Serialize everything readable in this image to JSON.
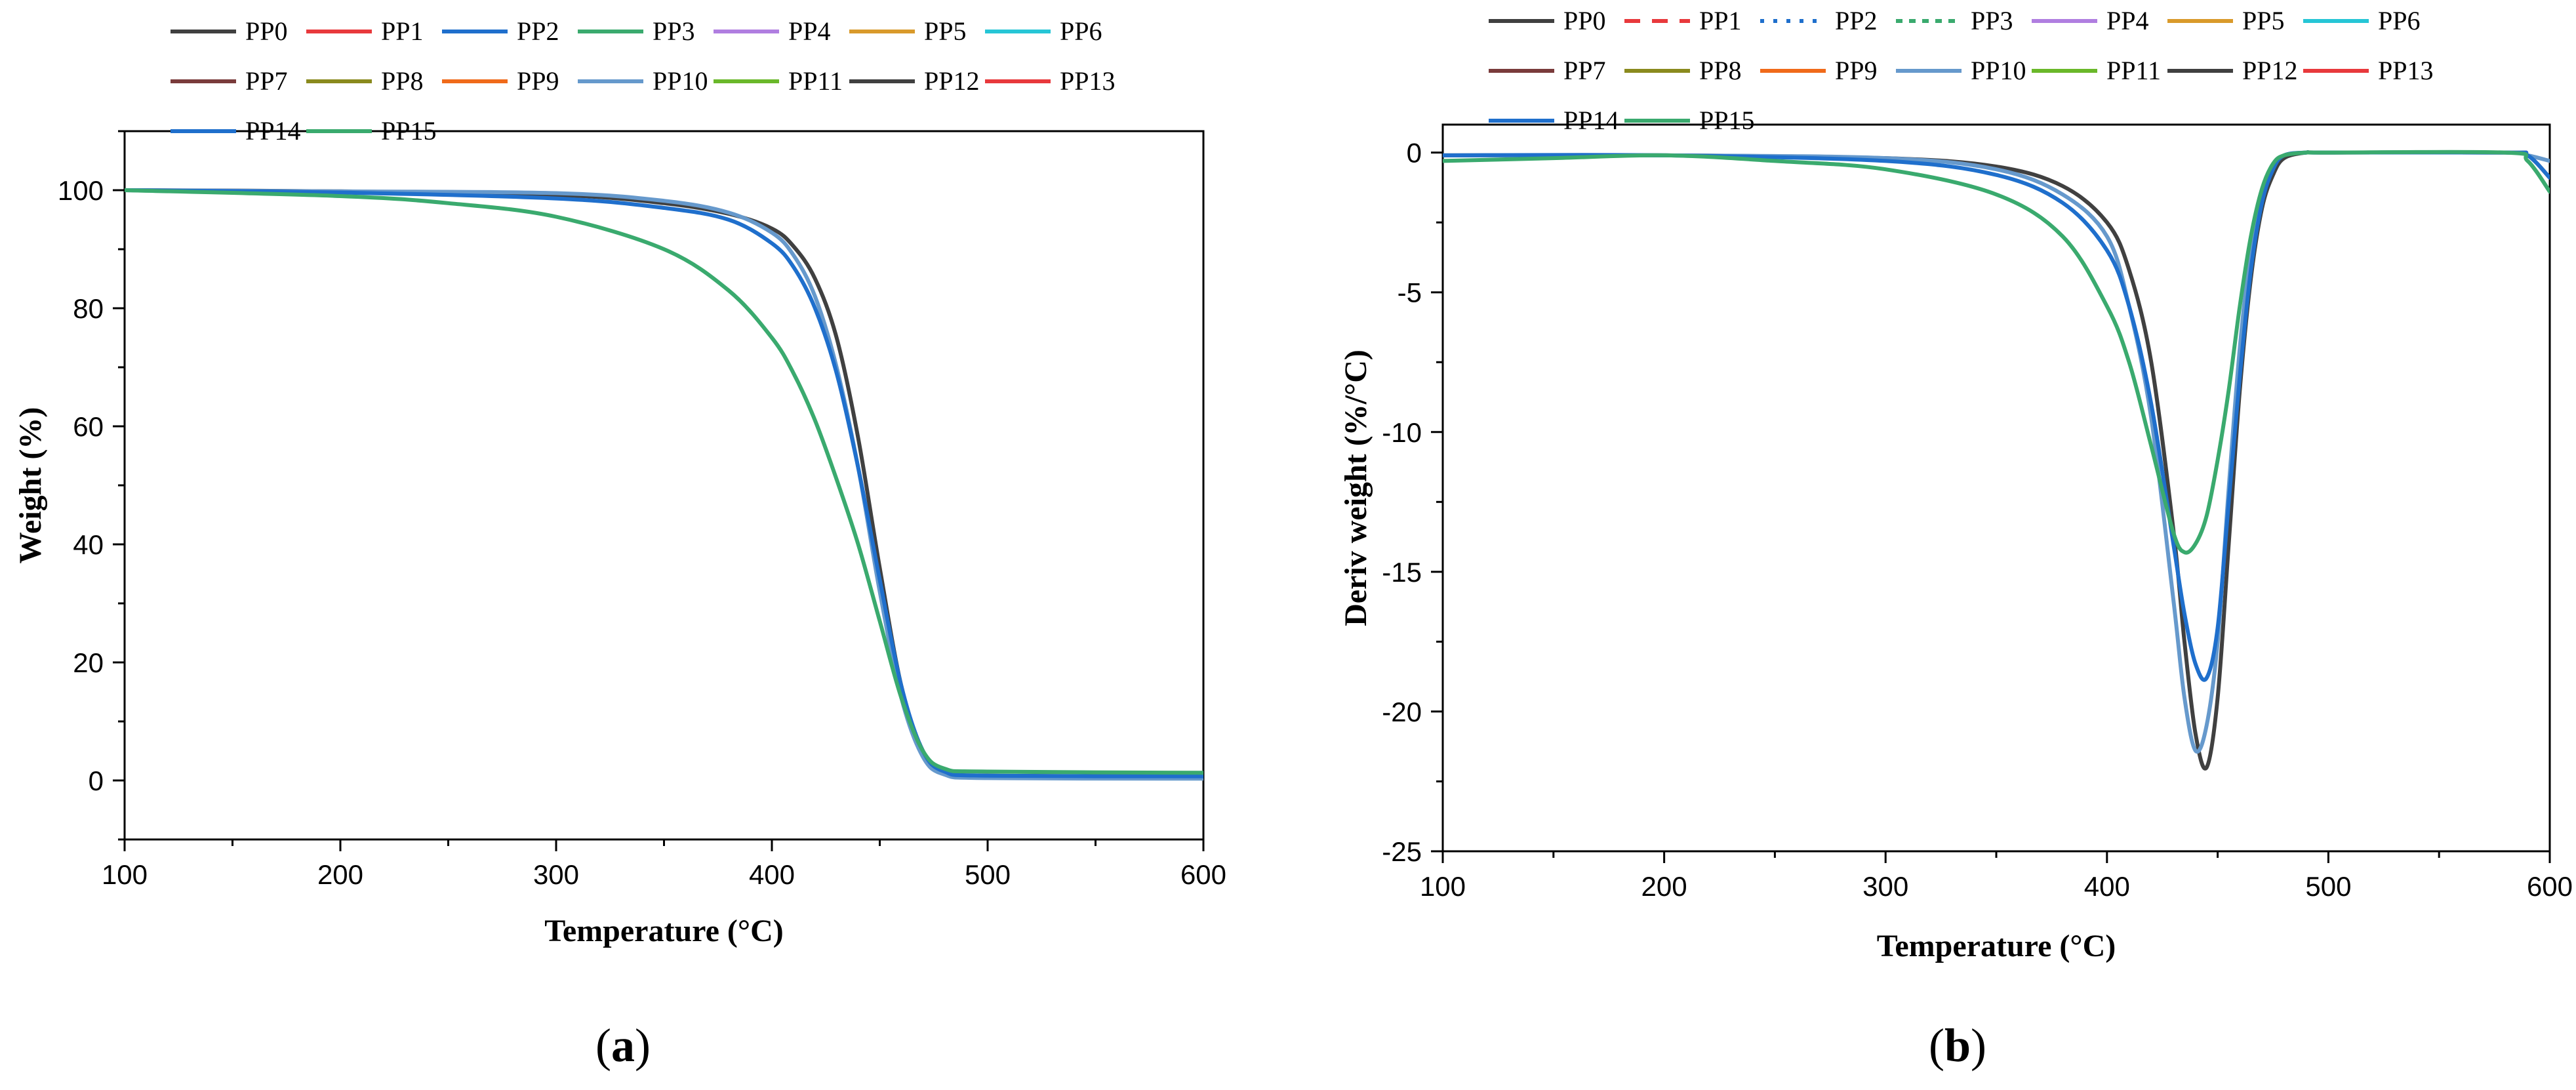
{
  "legend_entries": [
    "PP0",
    "PP1",
    "PP2",
    "PP3",
    "PP4",
    "PP5",
    "PP6",
    "PP7",
    "PP8",
    "PP9",
    "PP10",
    "PP11",
    "PP12",
    "PP13",
    "PP14",
    "PP15"
  ],
  "colors": {
    "PP0": "#404040",
    "PP1": "#e8393c",
    "PP2": "#1f6fcc",
    "PP3": "#3aaa6e",
    "PP4": "#b07ee0",
    "PP5": "#d99a2b",
    "PP6": "#26c6d6",
    "PP7": "#7a3b3b",
    "PP8": "#8a8a1e",
    "PP9": "#f06a1a",
    "PP10": "#6699cc",
    "PP11": "#6ab82a",
    "PP12": "#404040",
    "PP13": "#e8393c",
    "PP14": "#1f6fcc",
    "PP15": "#3aaa6e"
  },
  "chart_data": [
    {
      "panel_label_open": "(",
      "panel_label_letter": "a",
      "panel_label_close": ")",
      "type": "line",
      "title": "",
      "xlabel": "Temperature (°C)",
      "ylabel": "Weight (%)",
      "xlim": [
        100,
        600
      ],
      "ylim": [
        -10,
        110
      ],
      "xticks": [
        100,
        200,
        300,
        400,
        500,
        600
      ],
      "yticks": [
        0,
        20,
        40,
        60,
        80,
        100
      ],
      "legend_position": "top",
      "series": [
        {
          "name": "PP0",
          "x": [
            100,
            200,
            300,
            350,
            380,
            400,
            410,
            420,
            430,
            440,
            450,
            460,
            470,
            480,
            500,
            600
          ],
          "y": [
            100,
            99.8,
            99.2,
            97.8,
            96,
            93.5,
            90.5,
            85,
            75,
            58,
            36,
            16,
            5,
            1.5,
            0.8,
            0.7
          ]
        },
        {
          "name": "PP10",
          "x": [
            100,
            200,
            300,
            350,
            380,
            400,
            410,
            420,
            430,
            440,
            450,
            460,
            470,
            480,
            500,
            600
          ],
          "y": [
            100,
            99.8,
            99.5,
            98.2,
            96.2,
            92.8,
            89,
            82,
            70,
            53,
            32,
            14,
            4,
            1,
            0.4,
            0.3
          ]
        },
        {
          "name": "PP14",
          "x": [
            100,
            200,
            300,
            350,
            380,
            400,
            410,
            420,
            430,
            440,
            450,
            460,
            470,
            480,
            500,
            600
          ],
          "y": [
            100,
            99.6,
            98.6,
            97,
            95,
            91,
            87,
            80,
            69,
            53,
            34,
            16,
            5,
            1.5,
            0.8,
            0.7
          ]
        },
        {
          "name": "PP15",
          "x": [
            100,
            200,
            250,
            300,
            350,
            380,
            400,
            410,
            420,
            430,
            440,
            450,
            460,
            470,
            480,
            500,
            600
          ],
          "y": [
            100,
            99,
            97.8,
            95.5,
            90,
            83,
            75,
            69,
            61,
            51,
            40,
            27,
            14,
            5,
            2,
            1.5,
            1.3
          ]
        }
      ]
    },
    {
      "panel_label_open": "(",
      "panel_label_letter": "b",
      "panel_label_close": ")",
      "type": "line",
      "title": "",
      "xlabel": "Temperature (°C)",
      "ylabel": "Deriv weight (%/°C)",
      "xlim": [
        100,
        600
      ],
      "ylim": [
        -25,
        1
      ],
      "xticks": [
        100,
        200,
        300,
        400,
        500,
        600
      ],
      "yticks": [
        0,
        -5,
        -10,
        -15,
        -20,
        -25
      ],
      "legend_position": "top",
      "series": [
        {
          "name": "PP0",
          "x": [
            100,
            200,
            300,
            350,
            380,
            400,
            410,
            420,
            430,
            435,
            440,
            445,
            450,
            455,
            460,
            465,
            470,
            475,
            480,
            490,
            500,
            580,
            590,
            600
          ],
          "y": [
            -0.1,
            -0.1,
            -0.2,
            -0.5,
            -1.2,
            -2.5,
            -4.2,
            -7.5,
            -13.5,
            -17.5,
            -20.8,
            -22,
            -19.5,
            -14,
            -8.5,
            -4.5,
            -2,
            -0.8,
            -0.2,
            0,
            0,
            0,
            -0.1,
            -0.9
          ]
        },
        {
          "name": "PP10",
          "x": [
            100,
            200,
            300,
            350,
            380,
            400,
            410,
            420,
            430,
            435,
            440,
            445,
            450,
            455,
            460,
            465,
            470,
            475,
            480,
            490,
            500,
            580,
            590,
            600
          ],
          "y": [
            -0.1,
            -0.1,
            -0.2,
            -0.6,
            -1.5,
            -3,
            -5.5,
            -9.5,
            -16,
            -19.5,
            -21.4,
            -20.5,
            -17.5,
            -12,
            -7,
            -3.5,
            -1.5,
            -0.5,
            -0.1,
            0,
            0,
            0,
            -0.1,
            -0.3
          ]
        },
        {
          "name": "PP14",
          "x": [
            100,
            200,
            300,
            350,
            380,
            400,
            410,
            420,
            430,
            435,
            440,
            445,
            450,
            455,
            460,
            465,
            470,
            475,
            480,
            490,
            500,
            580,
            590,
            600
          ],
          "y": [
            -0.1,
            -0.1,
            -0.3,
            -0.8,
            -1.8,
            -3.5,
            -5.5,
            -9,
            -14,
            -16.5,
            -18.3,
            -18.8,
            -17,
            -12.5,
            -8,
            -4.2,
            -1.8,
            -0.6,
            -0.1,
            0,
            0,
            0,
            -0.1,
            -0.9
          ]
        },
        {
          "name": "PP15",
          "x": [
            100,
            150,
            200,
            250,
            300,
            350,
            380,
            400,
            410,
            420,
            430,
            435,
            440,
            445,
            450,
            455,
            460,
            465,
            470,
            475,
            480,
            490,
            500,
            580,
            590,
            600
          ],
          "y": [
            -0.3,
            -0.2,
            -0.1,
            -0.3,
            -0.6,
            -1.5,
            -3,
            -5.5,
            -7.5,
            -10.5,
            -13.6,
            -14.3,
            -14,
            -13,
            -11,
            -8.5,
            -5.5,
            -3,
            -1.3,
            -0.4,
            -0.1,
            0,
            0,
            0,
            -0.3,
            -1.4
          ]
        }
      ]
    }
  ]
}
